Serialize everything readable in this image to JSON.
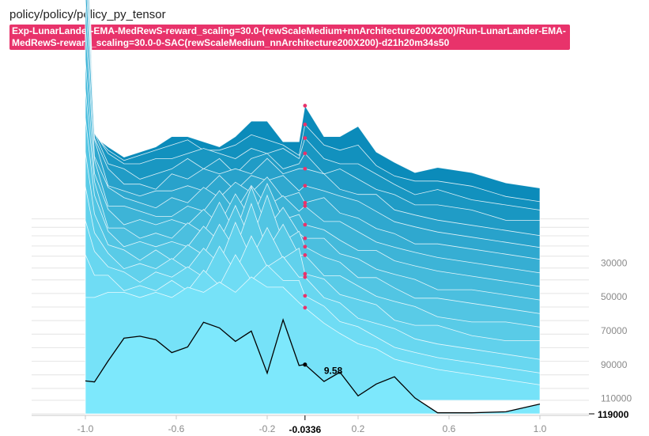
{
  "title": "policy/policy/policy_py_tensor",
  "run_tag": "Exp-LunarLander-EMA-MedRewS-reward_scaling=30.0-(rewScaleMedium+nnArchitecture200X200)/Run-LunarLander-EMA-MedRewS-reward_scaling=30.0-0-SAC(rewScaleMedium_nnArchitecture200X200)-d21h20m34s50",
  "chart_data": {
    "type": "area",
    "style": "histogram-offset",
    "x_ticks": [
      "-1.0",
      "-0.6",
      "-0.2",
      "0.2",
      "0.6",
      "1.0"
    ],
    "x_range": [
      -1.0,
      1.0
    ],
    "step_ticks": [
      "30000",
      "50000",
      "70000",
      "90000",
      "110000"
    ],
    "step_range": [
      0,
      119000
    ],
    "hover": {
      "x_label": "-0.0336",
      "step_label": "119000",
      "value_label": "9.58",
      "x": -0.0336,
      "step": 119000,
      "value": 9.58
    },
    "grid": true,
    "colors": {
      "oldest": "#0b8bba",
      "newest": "#7de8fc",
      "highlight_line": "#000000",
      "marker": "#e8336b",
      "tag_bg": "#e8336b"
    },
    "series": [
      {
        "step": 4000,
        "values": [
          70,
          16,
          14,
          12,
          13,
          14,
          16,
          16,
          15,
          14,
          16,
          19,
          19,
          15,
          15,
          22,
          16,
          16,
          18,
          13,
          11,
          9,
          10,
          9,
          7,
          6
        ]
      },
      {
        "step": 9000,
        "values": [
          68,
          18,
          15,
          13,
          14,
          15,
          16,
          17,
          15,
          15,
          16,
          18,
          17,
          16,
          14,
          20,
          16,
          15,
          16,
          12,
          10,
          9,
          9,
          8,
          6,
          5
        ]
      },
      {
        "step": 14000,
        "values": [
          66,
          20,
          16,
          14,
          14,
          15,
          15,
          16,
          17,
          16,
          15,
          17,
          16,
          17,
          15,
          19,
          15,
          14,
          14,
          12,
          10,
          8,
          9,
          7,
          6,
          5
        ]
      },
      {
        "step": 20000,
        "values": [
          62,
          22,
          16,
          15,
          13,
          14,
          15,
          17,
          15,
          17,
          14,
          17,
          18,
          15,
          16,
          18,
          14,
          15,
          13,
          11,
          10,
          8,
          8,
          7,
          5,
          5
        ]
      },
      {
        "step": 26000,
        "values": [
          60,
          23,
          17,
          14,
          14,
          13,
          16,
          15,
          17,
          16,
          17,
          16,
          19,
          16,
          17,
          17,
          16,
          13,
          12,
          12,
          9,
          8,
          7,
          6,
          5,
          4
        ]
      },
      {
        "step": 33000,
        "values": [
          58,
          25,
          16,
          15,
          14,
          15,
          15,
          16,
          15,
          18,
          15,
          18,
          17,
          18,
          15,
          16,
          15,
          14,
          13,
          11,
          9,
          8,
          7,
          6,
          5,
          4
        ]
      },
      {
        "step": 40000,
        "values": [
          55,
          24,
          18,
          16,
          15,
          14,
          16,
          15,
          18,
          16,
          19,
          17,
          20,
          16,
          17,
          15,
          16,
          13,
          12,
          10,
          9,
          7,
          7,
          6,
          5,
          4
        ]
      },
      {
        "step": 48000,
        "values": [
          52,
          26,
          17,
          17,
          16,
          15,
          15,
          17,
          16,
          20,
          16,
          21,
          17,
          19,
          16,
          17,
          14,
          14,
          12,
          10,
          9,
          8,
          7,
          6,
          5,
          4
        ]
      },
      {
        "step": 56000,
        "values": [
          48,
          26,
          19,
          16,
          17,
          16,
          17,
          16,
          19,
          16,
          22,
          17,
          24,
          17,
          18,
          16,
          15,
          13,
          11,
          11,
          9,
          8,
          7,
          6,
          5,
          4
        ]
      },
      {
        "step": 64000,
        "values": [
          45,
          27,
          18,
          18,
          16,
          17,
          16,
          19,
          17,
          23,
          17,
          26,
          18,
          22,
          17,
          16,
          16,
          13,
          12,
          10,
          9,
          8,
          6,
          6,
          5,
          4
        ]
      },
      {
        "step": 72000,
        "values": [
          42,
          27,
          20,
          17,
          18,
          17,
          18,
          17,
          21,
          18,
          25,
          18,
          27,
          18,
          20,
          17,
          15,
          14,
          11,
          11,
          9,
          7,
          7,
          6,
          5,
          4
        ]
      },
      {
        "step": 80000,
        "values": [
          38,
          26,
          20,
          19,
          17,
          19,
          17,
          20,
          18,
          24,
          19,
          28,
          19,
          24,
          18,
          18,
          14,
          14,
          12,
          10,
          9,
          8,
          6,
          5,
          5,
          4
        ]
      },
      {
        "step": 88000,
        "values": [
          34,
          25,
          21,
          18,
          19,
          18,
          20,
          18,
          22,
          19,
          27,
          20,
          26,
          20,
          22,
          17,
          16,
          13,
          12,
          11,
          8,
          7,
          7,
          5,
          4,
          4
        ]
      },
      {
        "step": 96000,
        "values": [
          30,
          24,
          21,
          20,
          18,
          20,
          19,
          21,
          19,
          25,
          20,
          27,
          21,
          23,
          19,
          19,
          15,
          14,
          11,
          10,
          9,
          7,
          6,
          5,
          4,
          3
        ]
      },
      {
        "step": 104000,
        "values": [
          26,
          22,
          22,
          19,
          20,
          19,
          21,
          19,
          23,
          20,
          26,
          21,
          24,
          21,
          21,
          18,
          16,
          13,
          12,
          10,
          8,
          7,
          6,
          5,
          4,
          3
        ]
      },
      {
        "step": 111000,
        "values": [
          20,
          20,
          21,
          21,
          20,
          21,
          20,
          22,
          21,
          23,
          21,
          24,
          22,
          22,
          19,
          18,
          15,
          13,
          11,
          10,
          8,
          7,
          6,
          5,
          4,
          3
        ]
      },
      {
        "step": 119000,
        "values": [
          6.4,
          6.2,
          10.3,
          14.7,
          15.1,
          14.4,
          11.9,
          13.0,
          17.8,
          16.7,
          14.1,
          16.1,
          7.9,
          18.3,
          9.4,
          9.58,
          6.3,
          8.1,
          3.5,
          5.8,
          7.2,
          3.1,
          0.2,
          0.2,
          0.4,
          1.9
        ]
      }
    ],
    "x_values": [
      -1.0,
      -0.96,
      -0.9,
      -0.83,
      -0.76,
      -0.69,
      -0.62,
      -0.55,
      -0.48,
      -0.41,
      -0.34,
      -0.27,
      -0.2,
      -0.13,
      -0.06,
      -0.0336,
      0.05,
      0.12,
      0.2,
      0.28,
      0.36,
      0.45,
      0.55,
      0.7,
      0.85,
      1.0
    ]
  }
}
